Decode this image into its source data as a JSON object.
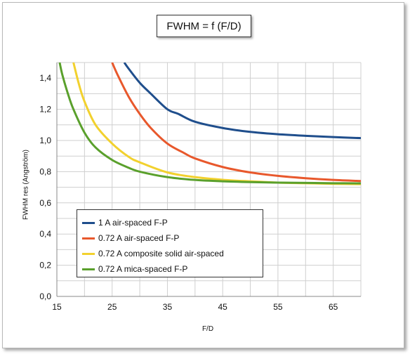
{
  "chart_data": {
    "type": "line",
    "title": "FWHM = f (F/D)",
    "xlabel": "F/D",
    "ylabel": "FWHM res (Angström)",
    "xlim": [
      15,
      70
    ],
    "ylim": [
      0,
      1.5
    ],
    "x_ticks": [
      "15",
      "25",
      "35",
      "45",
      "55",
      "65"
    ],
    "x_tick_values": [
      15,
      25,
      35,
      45,
      55,
      65
    ],
    "y_ticks": [
      "0,0",
      "0,2",
      "0,4",
      "0,6",
      "0,8",
      "1,0",
      "1,2",
      "1,4"
    ],
    "y_tick_values": [
      0,
      0.2,
      0.4,
      0.6,
      0.8,
      1.0,
      1.2,
      1.4
    ],
    "grid": true,
    "legend_position": "bottom-left",
    "series": [
      {
        "name": "1 A air-spaced F-P",
        "color": "#1f4e8c",
        "x": [
          27.2,
          28,
          30,
          32,
          35,
          37,
          40,
          45,
          50,
          55,
          60,
          65,
          70
        ],
        "y": [
          1.5,
          1.46,
          1.37,
          1.3,
          1.2,
          1.17,
          1.12,
          1.08,
          1.055,
          1.04,
          1.03,
          1.022,
          1.015
        ]
      },
      {
        "name": "0.72 A air-spaced F-P",
        "color": "#e8582c",
        "x": [
          25,
          26,
          28,
          30,
          32,
          35,
          38,
          40,
          45,
          50,
          55,
          60,
          65,
          70
        ],
        "y": [
          1.5,
          1.42,
          1.28,
          1.17,
          1.08,
          0.98,
          0.92,
          0.885,
          0.83,
          0.795,
          0.773,
          0.758,
          0.747,
          0.74
        ]
      },
      {
        "name": "0.72 A composite solid air-spaced",
        "color": "#f2d12e",
        "x": [
          18,
          19,
          20,
          22,
          25,
          28,
          30,
          35,
          40,
          45,
          50,
          55,
          60,
          65,
          70
        ],
        "y": [
          1.5,
          1.36,
          1.25,
          1.1,
          0.98,
          0.895,
          0.86,
          0.795,
          0.765,
          0.748,
          0.738,
          0.73,
          0.726,
          0.722,
          0.72
        ]
      },
      {
        "name": "0.72 A mica-spaced F-P",
        "color": "#5aa02c",
        "x": [
          15.5,
          16,
          17,
          18,
          20,
          22,
          25,
          28,
          30,
          35,
          40,
          45,
          50,
          55,
          60,
          65,
          70
        ],
        "y": [
          1.5,
          1.42,
          1.3,
          1.2,
          1.05,
          0.955,
          0.875,
          0.825,
          0.8,
          0.765,
          0.747,
          0.738,
          0.733,
          0.73,
          0.728,
          0.726,
          0.725
        ]
      }
    ]
  }
}
